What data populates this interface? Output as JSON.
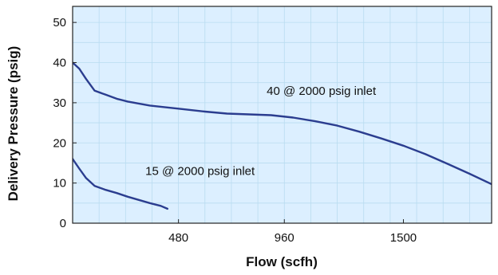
{
  "chart_data": {
    "type": "line",
    "title": "",
    "xlabel": "Flow (scfh)",
    "ylabel": "Delivery Pressure (psig)",
    "x_tick_labels": [
      "480",
      "960",
      "1500"
    ],
    "x_ticks": [
      480,
      960,
      1500
    ],
    "y_tick_labels": [
      "0",
      "10",
      "20",
      "30",
      "40",
      "50"
    ],
    "y_ticks": [
      0,
      10,
      20,
      30,
      40,
      50
    ],
    "xlim": [
      0,
      1900
    ],
    "ylim": [
      0,
      54
    ],
    "grid": true,
    "background_color": "#dcefff",
    "grid_color": "#b9dcf0",
    "line_color": "#2b3d8f",
    "series": [
      {
        "x": [
          0,
          30,
          60,
          100,
          150,
          200,
          250,
          300,
          350,
          400,
          500,
          600,
          700,
          800,
          900,
          1000,
          1100,
          1200,
          1300,
          1400,
          1500,
          1600,
          1700,
          1800,
          1900
        ],
        "y": [
          40,
          38.5,
          36,
          33,
          32,
          31,
          30.3,
          29.8,
          29.3,
          29,
          28.4,
          27.8,
          27.3,
          27.1,
          26.9,
          26.3,
          25.4,
          24.3,
          22.8,
          21.1,
          19.3,
          17.2,
          14.8,
          12.3,
          9.7
        ]
      },
      {
        "x": [
          0,
          30,
          60,
          100,
          150,
          200,
          250,
          300,
          350,
          400,
          430
        ],
        "y": [
          16,
          13.6,
          11.3,
          9.3,
          8.3,
          7.5,
          6.6,
          5.8,
          5,
          4.3,
          3.6
        ]
      }
    ],
    "annotations": [
      {
        "text": "40 @ 2000 psig inlet",
        "x": 880,
        "y": 32
      },
      {
        "text": "15 @ 2000 psig inlet",
        "x": 330,
        "y": 12
      }
    ]
  }
}
